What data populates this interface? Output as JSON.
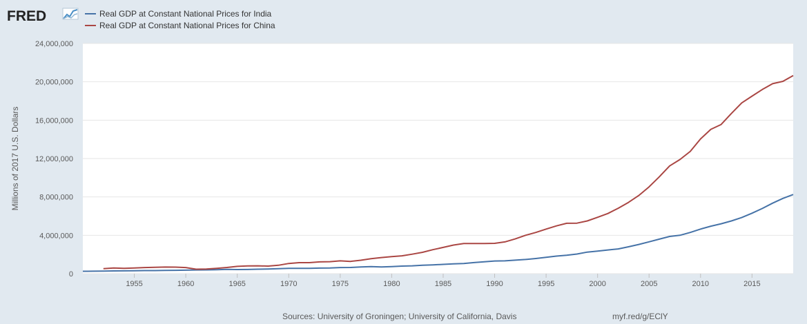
{
  "logo": {
    "text": "FRED"
  },
  "footer": {
    "sources": "Sources: University of Groningen; University of California, Davis",
    "link": "myf.red/g/EClY"
  },
  "colors": {
    "india": "#4572a7",
    "china": "#aa4643",
    "plot_bg": "#ffffff",
    "page_bg": "#e1e9f0",
    "grid": "#e6e6e6"
  },
  "chart_data": {
    "type": "line",
    "title": "",
    "xlabel": "",
    "ylabel": "Millions of 2017 U.S. Dollars",
    "xlim": [
      1950,
      2019
    ],
    "ylim": [
      0,
      24000000
    ],
    "x_ticks": [
      1955,
      1960,
      1965,
      1970,
      1975,
      1980,
      1985,
      1990,
      1995,
      2000,
      2005,
      2010,
      2015
    ],
    "x_tick_labels": [
      "1955",
      "1960",
      "1965",
      "1970",
      "1975",
      "1980",
      "1985",
      "1990",
      "1995",
      "2000",
      "2005",
      "2010",
      "2015"
    ],
    "y_ticks": [
      0,
      4000000,
      8000000,
      12000000,
      16000000,
      20000000,
      24000000
    ],
    "y_tick_labels": [
      "0",
      "4,000,000",
      "8,000,000",
      "12,000,000",
      "16,000,000",
      "20,000,000",
      "24,000,000"
    ],
    "grid": true,
    "legend_position": "top-left",
    "series": [
      {
        "name": "Real GDP at Constant National Prices for India",
        "color": "#4572a7",
        "x": [
          1950,
          1951,
          1952,
          1953,
          1954,
          1955,
          1956,
          1957,
          1958,
          1959,
          1960,
          1961,
          1962,
          1963,
          1964,
          1965,
          1966,
          1967,
          1968,
          1969,
          1970,
          1971,
          1972,
          1973,
          1974,
          1975,
          1976,
          1977,
          1978,
          1979,
          1980,
          1981,
          1982,
          1983,
          1984,
          1985,
          1986,
          1987,
          1988,
          1989,
          1990,
          1991,
          1992,
          1993,
          1994,
          1995,
          1996,
          1997,
          1998,
          1999,
          2000,
          2001,
          2002,
          2003,
          2004,
          2005,
          2006,
          2007,
          2008,
          2009,
          2010,
          2011,
          2012,
          2013,
          2014,
          2015,
          2016,
          2017,
          2018,
          2019
        ],
        "values": [
          250000,
          260000,
          270000,
          285000,
          295000,
          305000,
          320000,
          320000,
          340000,
          350000,
          370000,
          385000,
          395000,
          415000,
          445000,
          430000,
          435000,
          470000,
          490000,
          520000,
          550000,
          560000,
          560000,
          580000,
          590000,
          640000,
          650000,
          700000,
          740000,
          700000,
          740000,
          790000,
          820000,
          880000,
          920000,
          970000,
          1020000,
          1060000,
          1160000,
          1240000,
          1320000,
          1340000,
          1410000,
          1480000,
          1580000,
          1700000,
          1830000,
          1920000,
          2050000,
          2250000,
          2350000,
          2470000,
          2580000,
          2800000,
          3050000,
          3320000,
          3600000,
          3880000,
          4000000,
          4300000,
          4650000,
          4950000,
          5200000,
          5500000,
          5850000,
          6300000,
          6800000,
          7350000,
          7850000,
          8250000
        ]
      },
      {
        "name": "Real GDP at Constant National Prices for China",
        "color": "#aa4643",
        "x": [
          1952,
          1953,
          1954,
          1955,
          1956,
          1957,
          1958,
          1959,
          1960,
          1961,
          1962,
          1963,
          1964,
          1965,
          1966,
          1967,
          1968,
          1969,
          1970,
          1971,
          1972,
          1973,
          1974,
          1975,
          1976,
          1977,
          1978,
          1979,
          1980,
          1981,
          1982,
          1983,
          1984,
          1985,
          1986,
          1987,
          1988,
          1989,
          1990,
          1991,
          1992,
          1993,
          1994,
          1995,
          1996,
          1997,
          1998,
          1999,
          2000,
          2001,
          2002,
          2003,
          2004,
          2005,
          2006,
          2007,
          2008,
          2009,
          2010,
          2011,
          2012,
          2013,
          2014,
          2015,
          2016,
          2017,
          2018,
          2019
        ],
        "values": [
          520000,
          590000,
          560000,
          590000,
          640000,
          660000,
          690000,
          680000,
          640000,
          470000,
          480000,
          560000,
          650000,
          760000,
          810000,
          820000,
          790000,
          880000,
          1060000,
          1150000,
          1150000,
          1230000,
          1250000,
          1340000,
          1280000,
          1400000,
          1560000,
          1680000,
          1780000,
          1860000,
          2030000,
          2230000,
          2500000,
          2740000,
          2980000,
          3140000,
          3150000,
          3150000,
          3160000,
          3310000,
          3620000,
          4000000,
          4300000,
          4650000,
          4980000,
          5250000,
          5270000,
          5500000,
          5880000,
          6270000,
          6820000,
          7430000,
          8150000,
          9050000,
          10100000,
          11230000,
          11900000,
          12750000,
          14050000,
          15050000,
          15550000,
          16700000,
          17800000,
          18500000,
          19200000,
          19800000,
          20050000,
          20650000
        ]
      }
    ]
  }
}
